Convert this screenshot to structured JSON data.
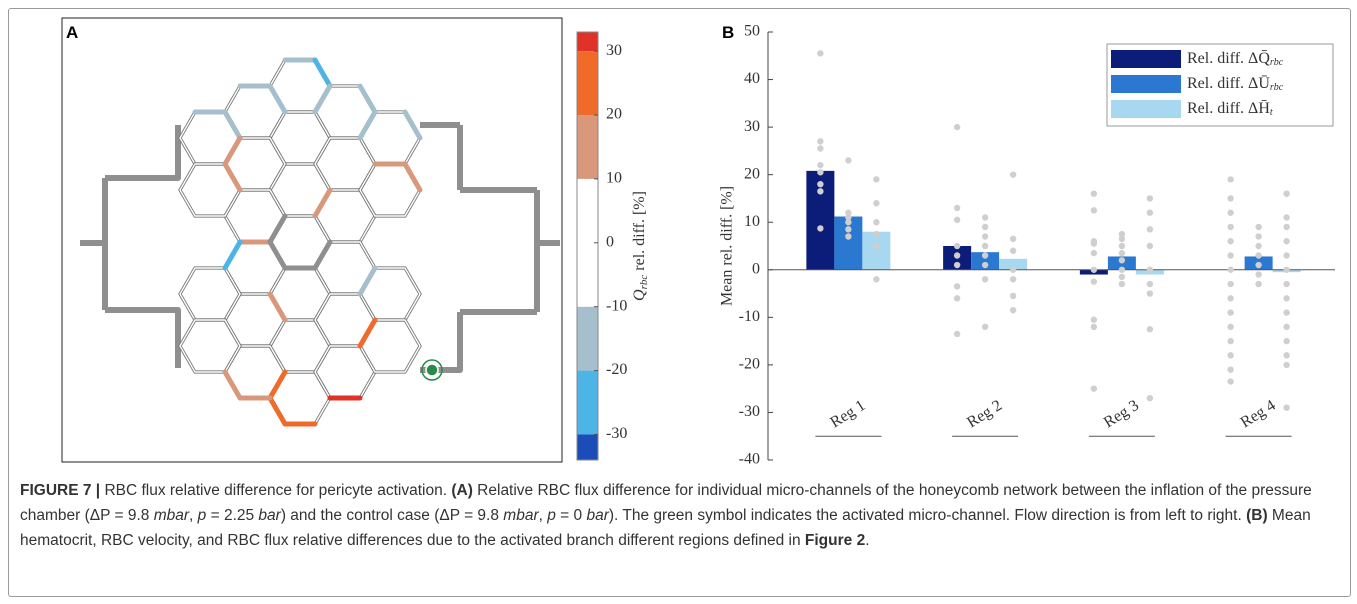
{
  "panel_a": {
    "label": "A",
    "colorbar": {
      "label": "Q",
      "label_subscript": "rbc",
      "label_rest": " rel. diff. [%]",
      "lim": [
        -34,
        33
      ],
      "ticks": [
        -30,
        -20,
        -10,
        0,
        10,
        20,
        30
      ],
      "bands": [
        {
          "from": -34,
          "to": -30,
          "color": "#1b4cb8"
        },
        {
          "from": -30,
          "to": -20,
          "color": "#4cb4e6"
        },
        {
          "from": -20,
          "to": -10,
          "color": "#a5bfcc"
        },
        {
          "from": -10,
          "to": 10,
          "color": "#ffffff"
        },
        {
          "from": 10,
          "to": 20,
          "color": "#d9987c"
        },
        {
          "from": 20,
          "to": 30,
          "color": "#f06a2a"
        },
        {
          "from": 30,
          "to": 33,
          "color": "#e03226"
        }
      ]
    }
  },
  "chart_data": {
    "type": "bar",
    "panel_label": "B",
    "ylabel": "Mean rel. diff. [%]",
    "categories": [
      "Reg 1",
      "Reg 2",
      "Reg 3",
      "Reg 4"
    ],
    "ylim": [
      -40,
      50
    ],
    "yticks": [
      -40,
      -30,
      -20,
      -10,
      0,
      10,
      20,
      30,
      40,
      50
    ],
    "legend": "upper right",
    "series": [
      {
        "name": "Rel. diff. ΔQ̄",
        "name_subscript": "rbc",
        "color": "#0b1d78",
        "values": [
          20.8,
          5,
          -1,
          0
        ],
        "points": [
          [
            45.5,
            27,
            25.5,
            22,
            20.5,
            18,
            16.5,
            8.7
          ],
          [
            30,
            13,
            10.5,
            5,
            3,
            1,
            -3.5,
            -6,
            -13.5
          ],
          [
            16,
            12.5,
            6,
            5.5,
            3.5,
            0,
            -2.5,
            -10.5,
            -12,
            -25
          ],
          [
            19,
            15,
            12,
            9,
            6,
            3,
            0,
            -3,
            -6,
            -9,
            -12,
            -15,
            -18,
            -21,
            -23.5
          ]
        ]
      },
      {
        "name": "Rel. diff. ΔŪ",
        "name_subscript": "rbc",
        "color": "#2b78d0",
        "values": [
          11.2,
          3.7,
          2.8,
          2.8
        ],
        "points": [
          [
            23,
            12,
            11,
            10,
            8.5,
            7
          ],
          [
            11,
            9,
            7,
            5,
            3,
            1,
            -2,
            -12
          ],
          [
            7.5,
            6.5,
            5,
            3.5,
            2,
            0,
            -1.5,
            -3
          ],
          [
            9,
            7,
            5,
            3,
            1,
            -1,
            -3
          ]
        ]
      },
      {
        "name": "Rel. diff. ΔH̄",
        "name_subscript": "t",
        "color": "#a8d8f0",
        "values": [
          8,
          2.3,
          -1,
          -0.5
        ],
        "points": [
          [
            19,
            14,
            10,
            7.5,
            5,
            -2
          ],
          [
            20,
            6.5,
            4,
            0,
            -2,
            -5.5,
            -8.5
          ],
          [
            15,
            12,
            8.5,
            5,
            0,
            -3,
            -5,
            -12.5,
            -27
          ],
          [
            16,
            11,
            9,
            6,
            3,
            0,
            -3,
            -6,
            -9,
            -12,
            -15,
            -18,
            -20,
            -29
          ]
        ]
      }
    ]
  },
  "caption": {
    "runs": [
      {
        "text": "FIGURE 7 | ",
        "bold": true
      },
      {
        "text": "RBC flux relative difference for pericyte activation. "
      },
      {
        "text": "(A)",
        "bold": true
      },
      {
        "text": " Relative RBC flux difference for individual micro-channels of the honeycomb network between the inflation of the pressure chamber (ΔP = 9.8 "
      },
      {
        "text": "mbar",
        "italic": true
      },
      {
        "text": ", "
      },
      {
        "text": "p",
        "italic": true
      },
      {
        "text": " = 2.25 "
      },
      {
        "text": "bar",
        "italic": true
      },
      {
        "text": ") and the control case (ΔP = 9.8 "
      },
      {
        "text": "mbar",
        "italic": true
      },
      {
        "text": ", "
      },
      {
        "text": "p",
        "italic": true
      },
      {
        "text": " = 0 "
      },
      {
        "text": "bar",
        "italic": true
      },
      {
        "text": "). The green symbol indicates the activated micro-channel. Flow direction is from left to right. "
      },
      {
        "text": "(B)",
        "bold": true
      },
      {
        "text": " Mean hematocrit, RBC velocity, and RBC flux relative differences due to the activated branch different regions defined in "
      },
      {
        "text": "Figure 2",
        "bold": true
      },
      {
        "text": "."
      }
    ]
  }
}
